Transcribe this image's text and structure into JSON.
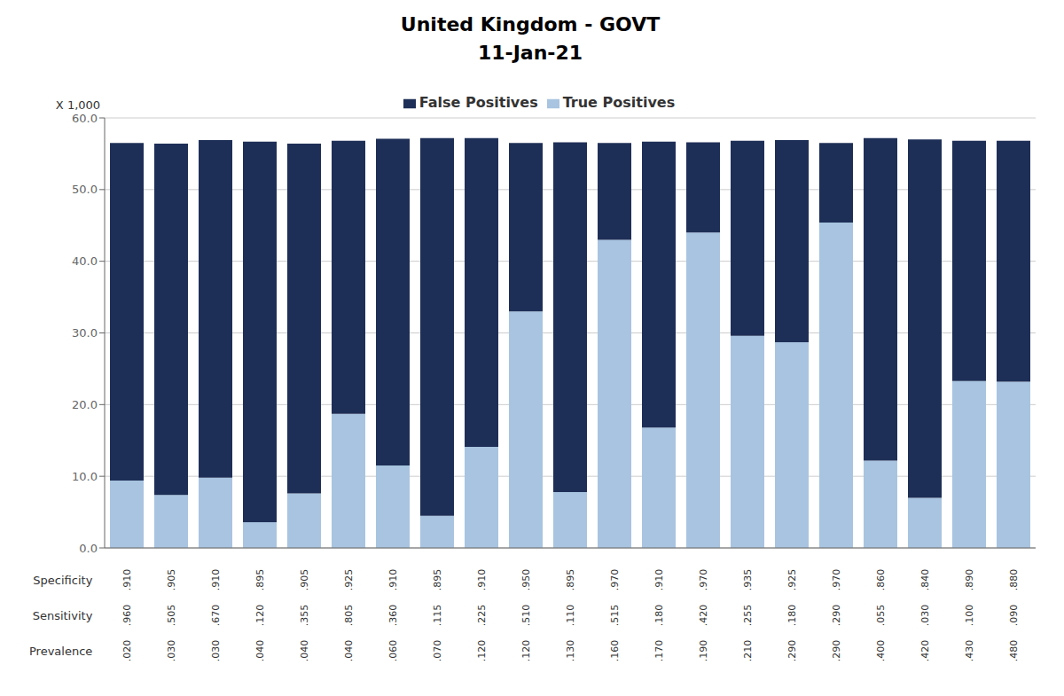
{
  "chart_data": {
    "type": "bar",
    "title": "United Kingdom - GOVT",
    "subtitle": "11-Jan-21",
    "ylabel": "X 1,000",
    "categories": [
      null,
      null,
      null,
      null,
      null,
      null,
      null,
      null,
      null,
      null,
      null,
      null,
      null,
      null,
      null,
      null,
      null,
      null,
      null,
      null,
      null
    ],
    "series": [
      {
        "name": "True Positives",
        "color": "#a8c4e0",
        "values": [
          9.4,
          7.4,
          9.8,
          3.6,
          7.6,
          18.7,
          11.5,
          4.5,
          14.1,
          33.0,
          7.8,
          43.0,
          16.8,
          44.0,
          29.6,
          28.7,
          45.4,
          12.2,
          7.0,
          23.3,
          23.2
        ]
      },
      {
        "name": "False Positives",
        "color": "#1e2f57",
        "values": [
          47.1,
          49.0,
          47.1,
          53.1,
          48.8,
          38.1,
          45.6,
          52.7,
          43.1,
          23.5,
          48.8,
          13.5,
          39.9,
          12.6,
          27.2,
          28.2,
          11.1,
          45.0,
          50.0,
          33.5,
          33.6
        ]
      }
    ],
    "stacked": true,
    "ylim": [
      0,
      60
    ],
    "yticks": [
      {
        "value": 0,
        "label": "0.0"
      },
      {
        "value": 10,
        "label": "10.0"
      },
      {
        "value": 20,
        "label": "20.0"
      },
      {
        "value": 30,
        "label": "30.0"
      },
      {
        "value": 40,
        "label": "40.0"
      },
      {
        "value": 50,
        "label": "50.0"
      },
      {
        "value": 60,
        "label": "60.0"
      }
    ],
    "grid": true,
    "legend": "top",
    "tick_labels": "y",
    "annotations": [
      {
        "label": "Specificity",
        "values": [
          ".910",
          ".905",
          ".910",
          ".895",
          ".905",
          ".925",
          ".910",
          ".895",
          ".910",
          ".950",
          ".895",
          ".970",
          ".910",
          ".970",
          ".935",
          ".925",
          ".970",
          ".860",
          ".840",
          ".890",
          ".880"
        ]
      },
      {
        "label": "Sensitivity",
        "values": [
          ".960",
          ".505",
          ".670",
          ".120",
          ".355",
          ".805",
          ".360",
          ".115",
          ".225",
          ".510",
          ".110",
          ".515",
          ".180",
          ".420",
          ".255",
          ".180",
          ".290",
          ".055",
          ".030",
          ".100",
          ".090"
        ]
      },
      {
        "label": "Prevalence",
        "values": [
          ".020",
          ".030",
          ".030",
          ".040",
          ".040",
          ".040",
          ".060",
          ".070",
          ".120",
          ".120",
          ".130",
          ".160",
          ".170",
          ".190",
          ".210",
          ".290",
          ".290",
          ".400",
          ".420",
          ".430",
          ".480"
        ]
      }
    ]
  }
}
